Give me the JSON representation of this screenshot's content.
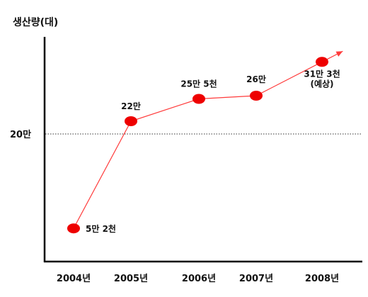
{
  "chart_data": {
    "type": "line",
    "title": "",
    "ylabel": "생산량(대)",
    "xlabel": "",
    "categories": [
      "2004년",
      "2005년",
      "2006년",
      "2007년",
      "2008년"
    ],
    "series": [
      {
        "values": [
          52000,
          220000,
          255000,
          260000,
          313000
        ],
        "data_labels": [
          "5만 2천",
          "22만",
          "25만 5천",
          "26만",
          [
            "31만 3천",
            "(예상)"
          ]
        ]
      }
    ],
    "reference_line": {
      "value": 200000,
      "label": "20만",
      "style": "dotted"
    },
    "ylim": [
      0,
      330000
    ],
    "grid": false,
    "legend": "none",
    "colors": {
      "line": "#ff3b3b",
      "marker": "#ee0000",
      "axis": "#000000",
      "reference": "#333333"
    }
  }
}
